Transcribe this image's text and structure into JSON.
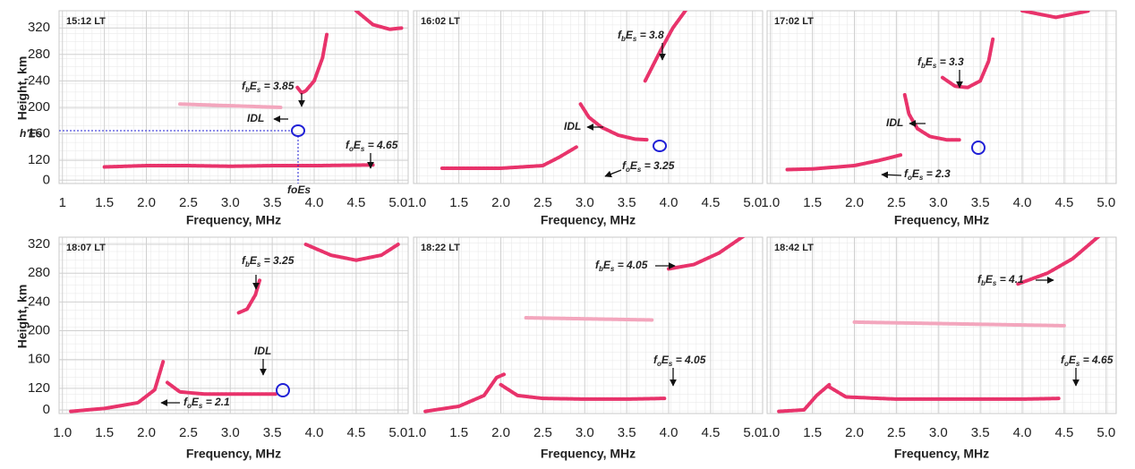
{
  "chart_data": [
    {
      "type": "line",
      "title": "15:12 LT",
      "xlabel": "Frequency, MHz",
      "ylabel": "Height, km",
      "xlim": [
        0.96,
        5.12
      ],
      "ylim": [
        85,
        346
      ],
      "xticks": [
        1,
        1.5,
        {
          "value": 2,
          "label": "2.0"
        },
        2.5,
        {
          "value": 3,
          "label": "3.0"
        },
        3.5,
        {
          "value": 4,
          "label": "4.0"
        },
        4.5,
        {
          "value": 5,
          "label": "5.0"
        }
      ],
      "yticks": [
        {
          "value": 90,
          "label": "0"
        },
        120,
        160,
        200,
        240,
        280,
        320
      ],
      "series": [
        {
          "color": "#e8336b",
          "x": [
            1.5,
            2.0,
            2.5,
            3.0,
            3.5,
            4.0,
            4.7
          ],
          "values": [
            110,
            112,
            112,
            111,
            112,
            112,
            113
          ]
        },
        {
          "color": "#e8336b",
          "x": [
            3.8,
            3.85,
            3.9,
            4.0,
            4.1,
            4.15
          ],
          "values": [
            230,
            222,
            225,
            240,
            275,
            310
          ]
        },
        {
          "color": "#e8336b",
          "x": [
            4.5,
            4.7,
            4.9,
            5.05
          ],
          "values": [
            346,
            325,
            318,
            320
          ]
        },
        {
          "color": "#f3a6bd",
          "x": [
            2.4,
            3.6
          ],
          "values": [
            205,
            200
          ]
        }
      ],
      "annotations": [
        {
          "parts": [
            "f",
            "b",
            "E",
            "s",
            " = 3.85"
          ]
        },
        {
          "parts": [
            "IDL"
          ]
        },
        {
          "parts": [
            "f",
            "o",
            "E",
            "s",
            " = 4.65"
          ]
        },
        {
          "parts": [
            "h'Es"
          ],
          "color": "#1f1fd6"
        },
        {
          "parts": [
            "foEs"
          ],
          "color": "#1f1fd6"
        }
      ]
    },
    {
      "type": "line",
      "title": "16:02 LT",
      "xlabel": "Frequency, MHz",
      "xlim": [
        0.96,
        5.12
      ],
      "ylim": [
        85,
        346
      ],
      "xticks": [
        {
          "value": 1,
          "label": "1.0"
        },
        1.5,
        {
          "value": 2,
          "label": "2.0"
        },
        2.5,
        {
          "value": 3,
          "label": "3.0"
        },
        3.5,
        {
          "value": 4,
          "label": "4.0"
        },
        4.5,
        {
          "value": 5,
          "label": "5.0"
        }
      ],
      "series": [
        {
          "color": "#e8336b",
          "x": [
            1.3,
            2.0,
            2.5,
            2.7,
            2.9
          ],
          "values": [
            108,
            108,
            112,
            125,
            140
          ]
        },
        {
          "color": "#e8336b",
          "x": [
            2.95,
            3.05,
            3.2,
            3.4,
            3.6,
            3.75
          ],
          "values": [
            205,
            185,
            170,
            158,
            152,
            151
          ]
        },
        {
          "color": "#e8336b",
          "x": [
            3.72,
            3.78,
            3.9,
            4.05,
            4.2
          ],
          "values": [
            240,
            255,
            285,
            320,
            346
          ]
        }
      ],
      "annotations": [
        {
          "parts": [
            "f",
            "b",
            "E",
            "s",
            " = 3.8"
          ]
        },
        {
          "parts": [
            "IDL"
          ]
        },
        {
          "parts": [
            "f",
            "o",
            "E",
            "s",
            " = 3.25"
          ]
        }
      ]
    },
    {
      "type": "line",
      "title": "17:02 LT",
      "xlabel": "Frequency, MHz",
      "xlim": [
        0.96,
        5.12
      ],
      "ylim": [
        85,
        346
      ],
      "xticks": [
        {
          "value": 1,
          "label": "1.0"
        },
        1.5,
        {
          "value": 2,
          "label": "2.0"
        },
        2.5,
        {
          "value": 3,
          "label": "3.0"
        },
        3.5,
        {
          "value": 4,
          "label": "4.0"
        },
        4.5,
        {
          "value": 5,
          "label": "5.0"
        }
      ],
      "series": [
        {
          "color": "#e8336b",
          "x": [
            1.2,
            1.5,
            2.0,
            2.3,
            2.55
          ],
          "values": [
            106,
            107,
            112,
            120,
            128
          ]
        },
        {
          "color": "#e8336b",
          "x": [
            2.6,
            2.65,
            2.75,
            2.9,
            3.1,
            3.25
          ],
          "values": [
            219,
            190,
            168,
            156,
            151,
            151
          ]
        },
        {
          "color": "#e8336b",
          "x": [
            3.05,
            3.2,
            3.35,
            3.5,
            3.6,
            3.65
          ],
          "values": [
            245,
            232,
            230,
            240,
            270,
            303
          ]
        },
        {
          "color": "#e8336b",
          "x": [
            4.0,
            4.4,
            4.8
          ],
          "values": [
            346,
            336,
            346
          ]
        }
      ],
      "annotations": [
        {
          "parts": [
            "f",
            "b",
            "E",
            "s",
            " = 3.3"
          ]
        },
        {
          "parts": [
            "IDL"
          ]
        },
        {
          "parts": [
            "f",
            "o",
            "E",
            "s",
            " = 2.3"
          ]
        }
      ]
    },
    {
      "type": "line",
      "title": "18:07 LT",
      "xlabel": "Frequency, MHz",
      "ylabel": "Height, km",
      "xlim": [
        0.96,
        5.12
      ],
      "ylim": [
        85,
        330
      ],
      "xticks": [
        {
          "value": 1,
          "label": "1.0"
        },
        1.5,
        {
          "value": 2,
          "label": "2.0"
        },
        2.5,
        {
          "value": 3,
          "label": "3.0"
        },
        3.5,
        {
          "value": 4,
          "label": "4.0"
        },
        4.5,
        {
          "value": 5,
          "label": "5.0"
        }
      ],
      "yticks": [
        {
          "value": 90,
          "label": "0"
        },
        120,
        160,
        200,
        240,
        280,
        320
      ],
      "series": [
        {
          "color": "#e8336b",
          "x": [
            1.1,
            1.5,
            1.9,
            2.1,
            2.2
          ],
          "values": [
            88,
            92,
            100,
            118,
            157
          ]
        },
        {
          "color": "#e8336b",
          "x": [
            2.25,
            2.4,
            2.7,
            3.0,
            3.3,
            3.55
          ],
          "values": [
            128,
            115,
            112,
            112,
            112,
            112
          ]
        },
        {
          "color": "#e8336b",
          "x": [
            3.1,
            3.2,
            3.3,
            3.35
          ],
          "values": [
            225,
            230,
            250,
            270
          ]
        },
        {
          "color": "#e8336b",
          "x": [
            3.9,
            4.2,
            4.5,
            4.8,
            5.0
          ],
          "values": [
            320,
            305,
            298,
            305,
            320
          ]
        }
      ],
      "annotations": [
        {
          "parts": [
            "f",
            "b",
            "E",
            "s",
            " = 3.25"
          ]
        },
        {
          "parts": [
            "IDL"
          ]
        },
        {
          "parts": [
            "f",
            "o",
            "E",
            "s",
            " = 2.1"
          ]
        }
      ]
    },
    {
      "type": "line",
      "title": "18:22 LT",
      "xlabel": "Frequency, MHz",
      "xlim": [
        0.96,
        5.12
      ],
      "ylim": [
        85,
        330
      ],
      "xticks": [
        {
          "value": 1,
          "label": "1.0"
        },
        1.5,
        {
          "value": 2,
          "label": "2.0"
        },
        2.5,
        {
          "value": 3,
          "label": "3.0"
        },
        3.5,
        {
          "value": 4,
          "label": "4.0"
        },
        4.5,
        {
          "value": 5,
          "label": "5.0"
        }
      ],
      "series": [
        {
          "color": "#e8336b",
          "x": [
            1.1,
            1.5,
            1.8,
            1.95,
            2.05
          ],
          "values": [
            88,
            95,
            110,
            135,
            140
          ]
        },
        {
          "color": "#e8336b",
          "x": [
            2.0,
            2.2,
            2.5,
            3.0,
            3.5,
            3.95
          ],
          "values": [
            125,
            110,
            106,
            105,
            105,
            106
          ]
        },
        {
          "color": "#e8336b",
          "x": [
            4.0,
            4.3,
            4.6,
            5.0
          ],
          "values": [
            286,
            292,
            308,
            340
          ]
        },
        {
          "color": "#f3a6bd",
          "x": [
            2.3,
            3.8
          ],
          "values": [
            218,
            215
          ]
        }
      ],
      "annotations": [
        {
          "parts": [
            "f",
            "b",
            "E",
            "s",
            " = 4.05"
          ]
        },
        {
          "parts": [
            "f",
            "o",
            "E",
            "s",
            " = 4.05"
          ]
        }
      ]
    },
    {
      "type": "line",
      "title": "18:42 LT",
      "xlabel": "Frequency, MHz",
      "xlim": [
        0.96,
        5.12
      ],
      "ylim": [
        85,
        330
      ],
      "xticks": [
        {
          "value": 1,
          "label": "1.0"
        },
        1.5,
        {
          "value": 2,
          "label": "2.0"
        },
        2.5,
        {
          "value": 3,
          "label": "3.0"
        },
        3.5,
        {
          "value": 4,
          "label": "4.0"
        },
        4.5,
        {
          "value": 5,
          "label": "5.0"
        }
      ],
      "series": [
        {
          "color": "#e8336b",
          "x": [
            1.1,
            1.4,
            1.55,
            1.7
          ],
          "values": [
            88,
            90,
            110,
            125
          ]
        },
        {
          "color": "#e8336b",
          "x": [
            1.7,
            1.9,
            2.5,
            3.0,
            3.5,
            4.0,
            4.45
          ],
          "values": [
            122,
            108,
            105,
            105,
            105,
            105,
            106
          ]
        },
        {
          "color": "#e8336b",
          "x": [
            3.95,
            4.3,
            4.6,
            5.0
          ],
          "values": [
            265,
            280,
            300,
            340
          ]
        },
        {
          "color": "#f3a6bd",
          "x": [
            2.0,
            4.5
          ],
          "values": [
            212,
            207
          ]
        }
      ],
      "annotations": [
        {
          "parts": [
            "f",
            "b",
            "E",
            "s",
            " = 4.1"
          ]
        },
        {
          "parts": [
            "f",
            "o",
            "E",
            "s",
            " = 4.65"
          ]
        }
      ]
    }
  ]
}
